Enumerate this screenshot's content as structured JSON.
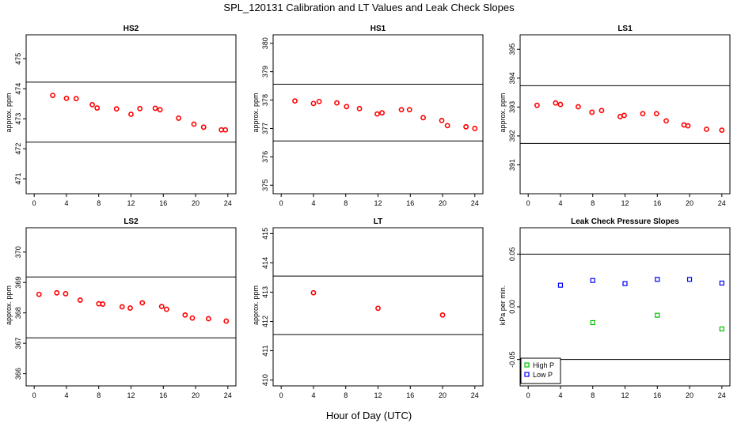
{
  "figure": {
    "title": "SPL_120131  Calibration and LT Values and Leak Check Slopes",
    "xlabel": "Hour of Day (UTC)"
  },
  "colors": {
    "calibration_marker": "#ff0000",
    "high_p": "#00c000",
    "low_p": "#0000ff",
    "axes": "#000000"
  },
  "chart_data": [
    {
      "type": "scatter",
      "title": "HS2",
      "xlabel": "",
      "ylabel": "approx. ppm",
      "xlim": [
        -1,
        25
      ],
      "ylim": [
        470.5,
        475.8
      ],
      "xticks": [
        0,
        4,
        8,
        12,
        16,
        20,
        24
      ],
      "yticks": [
        471,
        472,
        473,
        474,
        475
      ],
      "hlines": [
        474.22,
        472.22
      ],
      "series": [
        {
          "marker": "circle",
          "color": "#ff0000",
          "x": [
            2.3,
            4.0,
            5.2,
            7.2,
            7.8,
            10.2,
            12.0,
            13.1,
            15.0,
            15.6,
            17.9,
            19.8,
            21.0,
            23.2,
            23.7
          ],
          "y": [
            473.78,
            473.68,
            473.67,
            473.47,
            473.36,
            473.33,
            473.15,
            473.34,
            473.35,
            473.3,
            473.02,
            472.82,
            472.72,
            472.63,
            472.63
          ]
        }
      ]
    },
    {
      "type": "scatter",
      "title": "HS1",
      "xlabel": "",
      "ylabel": "approx. ppm",
      "xlim": [
        -1,
        25
      ],
      "ylim": [
        374.7,
        380.3
      ],
      "xticks": [
        0,
        4,
        8,
        12,
        16,
        20,
        24
      ],
      "yticks": [
        375,
        376,
        377,
        378,
        379,
        380
      ],
      "hlines": [
        378.56,
        376.56
      ],
      "series": [
        {
          "marker": "circle",
          "color": "#ff0000",
          "x": [
            1.7,
            4.0,
            4.7,
            6.9,
            8.1,
            9.7,
            11.9,
            12.5,
            14.9,
            15.9,
            17.6,
            19.9,
            20.6,
            22.9,
            24.0
          ],
          "y": [
            377.97,
            377.88,
            377.95,
            377.9,
            377.77,
            377.7,
            377.51,
            377.55,
            377.66,
            377.66,
            377.38,
            377.28,
            377.1,
            377.06,
            377.0
          ]
        }
      ]
    },
    {
      "type": "scatter",
      "title": "LS1",
      "xlabel": "",
      "ylabel": "approx. ppm",
      "xlim": [
        -1,
        25
      ],
      "ylim": [
        390.0,
        395.5
      ],
      "xticks": [
        0,
        4,
        8,
        12,
        16,
        20,
        24
      ],
      "yticks": [
        391,
        392,
        393,
        394,
        395
      ],
      "hlines": [
        393.74,
        391.74
      ],
      "series": [
        {
          "marker": "circle",
          "color": "#ff0000",
          "x": [
            1.1,
            3.4,
            4.0,
            6.2,
            7.9,
            9.1,
            11.4,
            11.9,
            14.2,
            15.9,
            17.1,
            19.3,
            19.8,
            22.1,
            24.0
          ],
          "y": [
            393.06,
            393.14,
            393.09,
            393.01,
            392.82,
            392.88,
            392.67,
            392.71,
            392.77,
            392.77,
            392.52,
            392.38,
            392.35,
            392.23,
            392.2
          ]
        }
      ]
    },
    {
      "type": "scatter",
      "title": "LS2",
      "xlabel": "",
      "ylabel": "approx. ppm",
      "xlim": [
        -1,
        25
      ],
      "ylim": [
        365.6,
        370.8
      ],
      "xticks": [
        0,
        4,
        8,
        12,
        16,
        20,
        24
      ],
      "yticks": [
        366,
        367,
        368,
        369,
        370
      ],
      "hlines": [
        369.18,
        367.18
      ],
      "series": [
        {
          "marker": "circle",
          "color": "#ff0000",
          "x": [
            0.6,
            2.8,
            3.9,
            5.7,
            8.0,
            8.5,
            10.9,
            11.9,
            13.4,
            15.8,
            16.4,
            18.7,
            19.6,
            21.6,
            23.8
          ],
          "y": [
            368.61,
            368.66,
            368.63,
            368.42,
            368.3,
            368.29,
            368.2,
            368.16,
            368.33,
            368.21,
            368.12,
            367.93,
            367.83,
            367.81,
            367.73
          ]
        }
      ]
    },
    {
      "type": "scatter",
      "title": "LT",
      "xlabel": "",
      "ylabel": "approx. ppm",
      "xlim": [
        -1,
        25
      ],
      "ylim": [
        409.8,
        415.2
      ],
      "xticks": [
        0,
        4,
        8,
        12,
        16,
        20,
        24
      ],
      "yticks": [
        410,
        411,
        412,
        413,
        414,
        415
      ],
      "hlines": [
        413.55,
        411.55
      ],
      "series": [
        {
          "marker": "circle",
          "color": "#ff0000",
          "x": [
            4.0,
            12.0,
            20.0
          ],
          "y": [
            412.98,
            412.45,
            412.22
          ]
        }
      ]
    },
    {
      "type": "scatter",
      "title": "Leak Check Pressure Slopes",
      "xlabel": "",
      "ylabel": "kPa per min.",
      "xlim": [
        -1,
        25
      ],
      "ylim": [
        -0.075,
        0.075
      ],
      "xticks": [
        0,
        4,
        8,
        12,
        16,
        20,
        24
      ],
      "yticks": [
        -0.05,
        0.0,
        0.05
      ],
      "ytick_labels": [
        "-0.05",
        "0.00",
        "0.05"
      ],
      "hlines": [
        0.05,
        -0.05
      ],
      "legend": "bottom-left",
      "series": [
        {
          "name": "High P",
          "marker": "square",
          "color": "#00c000",
          "x": [
            8,
            16,
            24
          ],
          "y": [
            -0.015,
            -0.008,
            -0.021
          ]
        },
        {
          "name": "Low P",
          "marker": "square",
          "color": "#0000ff",
          "x": [
            4,
            8,
            12,
            16,
            20,
            24
          ],
          "y": [
            0.0205,
            0.025,
            0.022,
            0.026,
            0.026,
            0.0225
          ]
        }
      ]
    }
  ]
}
